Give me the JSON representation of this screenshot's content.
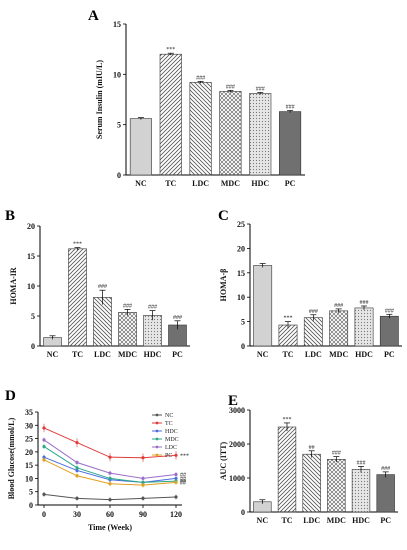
{
  "panels": {
    "A": {
      "label": "A"
    },
    "B": {
      "label": "B"
    },
    "C": {
      "label": "C"
    },
    "D": {
      "label": "D"
    },
    "E": {
      "label": "E"
    }
  },
  "chart_data": [
    {
      "id": "A",
      "type": "bar",
      "title": "",
      "xlabel": "",
      "ylabel": "Serum Insulin (mIU/L)",
      "ylim": [
        0,
        15
      ],
      "yticks": [
        "0",
        "5",
        "10",
        "15"
      ],
      "categories": [
        "NC",
        "TC",
        "LDC",
        "MDC",
        "HDC",
        "PC"
      ],
      "values": [
        5.6,
        12.0,
        9.2,
        8.3,
        8.1,
        6.3
      ],
      "errors": [
        0.1,
        0.1,
        0.1,
        0.1,
        0.1,
        0.1
      ],
      "annotations": [
        "",
        "***",
        "###",
        "###",
        "###",
        "###"
      ],
      "colors": [
        "#cfcfcf",
        "#ffffff",
        "#ffffff",
        "#ffffff",
        "#e3e3e3",
        "#6e6e6e"
      ]
    },
    {
      "id": "B",
      "type": "bar",
      "title": "",
      "xlabel": "",
      "ylabel": "HOMA-IR",
      "ylim": [
        0,
        20
      ],
      "yticks": [
        "0",
        "5",
        "10",
        "15",
        "20"
      ],
      "categories": [
        "NC",
        "TC",
        "LDC",
        "MDC",
        "HDC",
        "PC"
      ],
      "values": [
        1.4,
        16.2,
        8.1,
        5.6,
        5.1,
        3.5
      ],
      "errors": [
        0.3,
        0.2,
        1.2,
        0.5,
        0.8,
        0.7
      ],
      "annotations": [
        "",
        "***",
        "###",
        "###",
        "###",
        "###"
      ],
      "colors": [
        "#cfcfcf",
        "#ffffff",
        "#ffffff",
        "#ffffff",
        "#e3e3e3",
        "#6e6e6e"
      ]
    },
    {
      "id": "C",
      "type": "bar",
      "title": "",
      "xlabel": "",
      "ylabel": "HOMA-β",
      "ylim": [
        0,
        25
      ],
      "yticks": [
        "0",
        "5",
        "10",
        "15",
        "20",
        "25"
      ],
      "categories": [
        "NC",
        "TC",
        "LDC",
        "MDC",
        "HDC",
        "PC"
      ],
      "values": [
        16.5,
        4.3,
        5.8,
        7.2,
        7.8,
        6.1
      ],
      "errors": [
        0.4,
        0.7,
        0.6,
        0.4,
        0.4,
        0.4
      ],
      "annotations": [
        "",
        "***",
        "###",
        "###",
        "###",
        "###"
      ],
      "colors": [
        "#cfcfcf",
        "#ffffff",
        "#ffffff",
        "#ffffff",
        "#e3e3e3",
        "#6e6e6e"
      ]
    },
    {
      "id": "D",
      "type": "line",
      "title": "",
      "xlabel": "Time (Week)",
      "ylabel": "Blood Glucose(mmol/L)",
      "x": [
        0,
        30,
        60,
        90,
        120
      ],
      "xlim": [
        0,
        120
      ],
      "ylim": [
        0,
        35
      ],
      "yticks": [
        "0",
        "5",
        "10",
        "15",
        "20",
        "25",
        "30",
        "35"
      ],
      "xticks": [
        "0",
        "30",
        "60",
        "90",
        "120"
      ],
      "legend_position": "top-right",
      "series": [
        {
          "name": "NC",
          "color": "#555555",
          "values": [
            4.0,
            2.5,
            2.0,
            2.5,
            3.0
          ]
        },
        {
          "name": "TC",
          "color": "#e03a3a",
          "values": [
            29.0,
            23.5,
            18.0,
            17.8,
            18.7
          ]
        },
        {
          "name": "HDC",
          "color": "#4a6ce0",
          "values": [
            18.0,
            13.0,
            9.5,
            8.5,
            10.0
          ]
        },
        {
          "name": "MDC",
          "color": "#2aa88a",
          "values": [
            22.0,
            14.0,
            10.0,
            8.5,
            9.0
          ]
        },
        {
          "name": "LDC",
          "color": "#9a6ec8",
          "values": [
            24.5,
            16.0,
            12.0,
            10.0,
            11.5
          ]
        },
        {
          "name": "PC",
          "color": "#e0a020",
          "values": [
            17.0,
            11.0,
            8.0,
            7.5,
            8.5
          ]
        }
      ],
      "annotations": [
        "***",
        "##",
        "##",
        "##",
        "##"
      ]
    },
    {
      "id": "E",
      "type": "bar",
      "title": "",
      "xlabel": "",
      "ylabel": "AUC (ITT)",
      "ylim": [
        0,
        3000
      ],
      "yticks": [
        "0",
        "1000",
        "2000",
        "3000"
      ],
      "categories": [
        "NC",
        "TC",
        "LDC",
        "MDC",
        "HDC",
        "PC"
      ],
      "values": [
        300,
        2500,
        1700,
        1550,
        1250,
        1100
      ],
      "errors": [
        60,
        120,
        100,
        80,
        90,
        80
      ],
      "annotations": [
        "",
        "***",
        "##",
        "###",
        "###",
        "###"
      ],
      "colors": [
        "#cfcfcf",
        "#ffffff",
        "#ffffff",
        "#ffffff",
        "#e3e3e3",
        "#6e6e6e"
      ]
    }
  ]
}
